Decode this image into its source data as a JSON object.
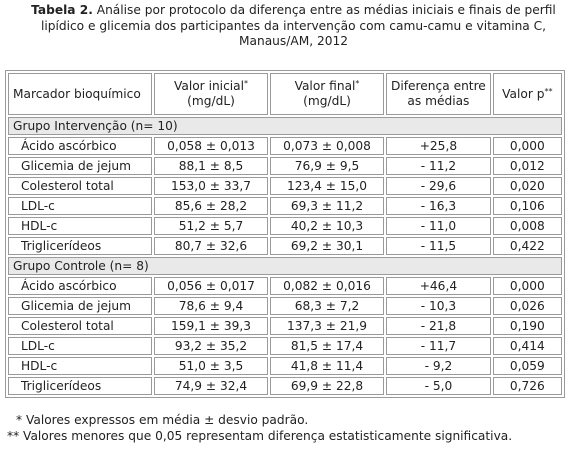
{
  "caption": {
    "label": "Tabela 2.",
    "line1": " Análise por protocolo da diferença entre as médias iniciais e finais de perfil",
    "line2": "lipídico e glicemia dos participantes da intervenção com camu-camu e vitamina C,",
    "line3": "Manaus/AM, 2012"
  },
  "header": {
    "marker": "Marcador bioquímico",
    "initial": "Valor inicial",
    "initial_sup": "*",
    "initial_unit": "(mg/dL)",
    "final": "Valor final",
    "final_sup": "*",
    "final_unit": "(mg/dL)",
    "diff_line1": "Diferença entre",
    "diff_line2": "as médias",
    "p": "Valor p",
    "p_sup": "**"
  },
  "groups": [
    {
      "title": "Grupo Intervenção (n= 10)",
      "rows": [
        {
          "marker": "Ácido ascórbico",
          "initial": "0,058 ± 0,013",
          "final": "0,073 ± 0,008",
          "diff": "+25,8",
          "p": "0,000"
        },
        {
          "marker": "Glicemia de jejum",
          "initial": "88,1 ± 8,5",
          "final": "76,9 ± 9,5",
          "diff": "- 11,2",
          "p": "0,012"
        },
        {
          "marker": "Colesterol total",
          "initial": "153,0 ± 33,7",
          "final": "123,4 ± 15,0",
          "diff": "- 29,6",
          "p": "0,020"
        },
        {
          "marker": "LDL-c",
          "initial": "85,6 ± 28,2",
          "final": "69,3 ± 11,2",
          "diff": "- 16,3",
          "p": "0,106"
        },
        {
          "marker": "HDL-c",
          "initial": "51,2 ± 5,7",
          "final": "40,2 ± 10,3",
          "diff": "- 11,0",
          "p": "0,008"
        },
        {
          "marker": "Triglicerídeos",
          "initial": "80,7 ± 32,6",
          "final": "69,2 ± 30,1",
          "diff": "- 11,5",
          "p": "0,422"
        }
      ]
    },
    {
      "title": "Grupo Controle (n= 8)",
      "rows": [
        {
          "marker": "Ácido ascórbico",
          "initial": "0,056 ± 0,017",
          "final": "0,082 ± 0,016",
          "diff": "+46,4",
          "p": "0,000"
        },
        {
          "marker": "Glicemia de jejum",
          "initial": "78,6 ± 9,4",
          "final": "68,3 ± 7,2",
          "diff": "- 10,3",
          "p": "0,026"
        },
        {
          "marker": "Colesterol total",
          "initial": "159,1 ± 39,3",
          "final": "137,3 ± 21,9",
          "diff": "- 21,8",
          "p": "0,190"
        },
        {
          "marker": "LDL-c",
          "initial": "93,2 ± 35,2",
          "final": "81,5 ± 17,4",
          "diff": "- 11,7",
          "p": "0,414"
        },
        {
          "marker": "HDL-c",
          "initial": "51,0 ± 3,5",
          "final": "41,8 ± 11,4",
          "diff": "- 9,2",
          "p": "0,059"
        },
        {
          "marker": "Triglicerídeos",
          "initial": "74,9 ± 32,4",
          "final": "69,9 ± 22,8",
          "diff": "- 5,0",
          "p": "0,726"
        }
      ]
    }
  ],
  "notes": {
    "n1": "* Valores expressos em média ± desvio padrão.",
    "n2": "** Valores menores que 0,05 representam diferença estatisticamente significativa."
  }
}
